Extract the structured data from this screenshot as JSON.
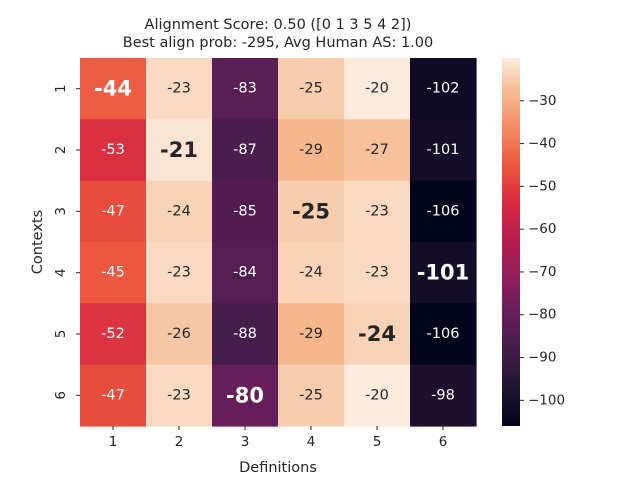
{
  "chart_data": {
    "type": "heatmap",
    "title_lines": [
      "Alignment Score: 0.50 ([0 1 3 5 4 2])",
      "Best align prob: -295, Avg Human AS: 1.00"
    ],
    "xlabel": "Definitions",
    "ylabel": "Contexts",
    "x_ticks": [
      "1",
      "2",
      "3",
      "4",
      "5",
      "6"
    ],
    "y_ticks": [
      "1",
      "2",
      "3",
      "4",
      "5",
      "6"
    ],
    "values": [
      [
        -44,
        -23,
        -83,
        -25,
        -20,
        -102
      ],
      [
        -53,
        -21,
        -87,
        -29,
        -27,
        -101
      ],
      [
        -47,
        -24,
        -85,
        -25,
        -23,
        -106
      ],
      [
        -45,
        -23,
        -84,
        -24,
        -23,
        -101
      ],
      [
        -52,
        -26,
        -88,
        -29,
        -24,
        -106
      ],
      [
        -47,
        -23,
        -80,
        -25,
        -20,
        -98
      ]
    ],
    "highlighted_cells": [
      [
        0,
        0
      ],
      [
        1,
        1
      ],
      [
        2,
        3
      ],
      [
        3,
        5
      ],
      [
        4,
        4
      ],
      [
        5,
        2
      ]
    ],
    "color_range": [
      -106,
      -20
    ],
    "colorbar_ticks": [
      "−30",
      "−40",
      "−50",
      "−60",
      "−70",
      "−80",
      "−90",
      "−100"
    ],
    "colorbar_tick_values": [
      -30,
      -40,
      -50,
      -60,
      -70,
      -80,
      -90,
      -100
    ],
    "colormap": "rocket"
  }
}
